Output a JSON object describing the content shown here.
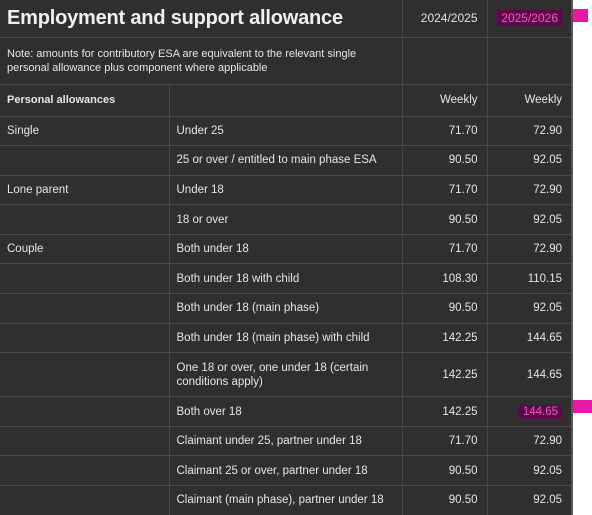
{
  "header": {
    "title": "Employment and support allowance",
    "year_current": "2024/2025",
    "year_next": "2025/2026"
  },
  "note": "Note: amounts for contributory ESA are equivalent to the relevant single personal allowance plus component where applicable",
  "section": {
    "label": "Personal allowances",
    "col_current": "Weekly",
    "col_next": "Weekly"
  },
  "rows": [
    {
      "group": "Single",
      "desc": "Under 25",
      "v2024": "71.70",
      "v2025": "72.90"
    },
    {
      "group": "",
      "desc": "25 or over / entitled to main phase ESA",
      "v2024": "90.50",
      "v2025": "92.05"
    },
    {
      "group": "Lone parent",
      "desc": "Under 18",
      "v2024": "71.70",
      "v2025": "72.90"
    },
    {
      "group": "",
      "desc": "18 or over",
      "v2024": "90.50",
      "v2025": "92.05"
    },
    {
      "group": "Couple",
      "desc": "Both under 18",
      "v2024": "71.70",
      "v2025": "72.90"
    },
    {
      "group": "",
      "desc": "Both under 18 with child",
      "v2024": "108.30",
      "v2025": "110.15"
    },
    {
      "group": "",
      "desc": "Both under 18 (main phase)",
      "v2024": "90.50",
      "v2025": "92.05"
    },
    {
      "group": "",
      "desc": "Both under 18 (main phase) with child",
      "v2024": "142.25",
      "v2025": "144.65"
    },
    {
      "group": "",
      "desc": "One 18 or over, one under 18 (certain conditions apply)",
      "v2024": "142.25",
      "v2025": "144.65"
    },
    {
      "group": "",
      "desc": "Both over 18",
      "v2024": "142.25",
      "v2025": "144.65"
    },
    {
      "group": "",
      "desc": "Claimant under 25, partner under 18",
      "v2024": "71.70",
      "v2025": "72.90"
    },
    {
      "group": "",
      "desc": "Claimant 25 or over, partner under 18",
      "v2024": "90.50",
      "v2025": "92.05"
    },
    {
      "group": "",
      "desc": "Claimant (main phase), partner under 18",
      "v2024": "90.50",
      "v2025": "92.05"
    }
  ],
  "colors": {
    "background": "#2f2f2f",
    "text": "#e6e6e6",
    "highlight_bg": "#5a0a4b",
    "highlight_text": "#ff4fc8",
    "marker": "#e61aa0"
  }
}
